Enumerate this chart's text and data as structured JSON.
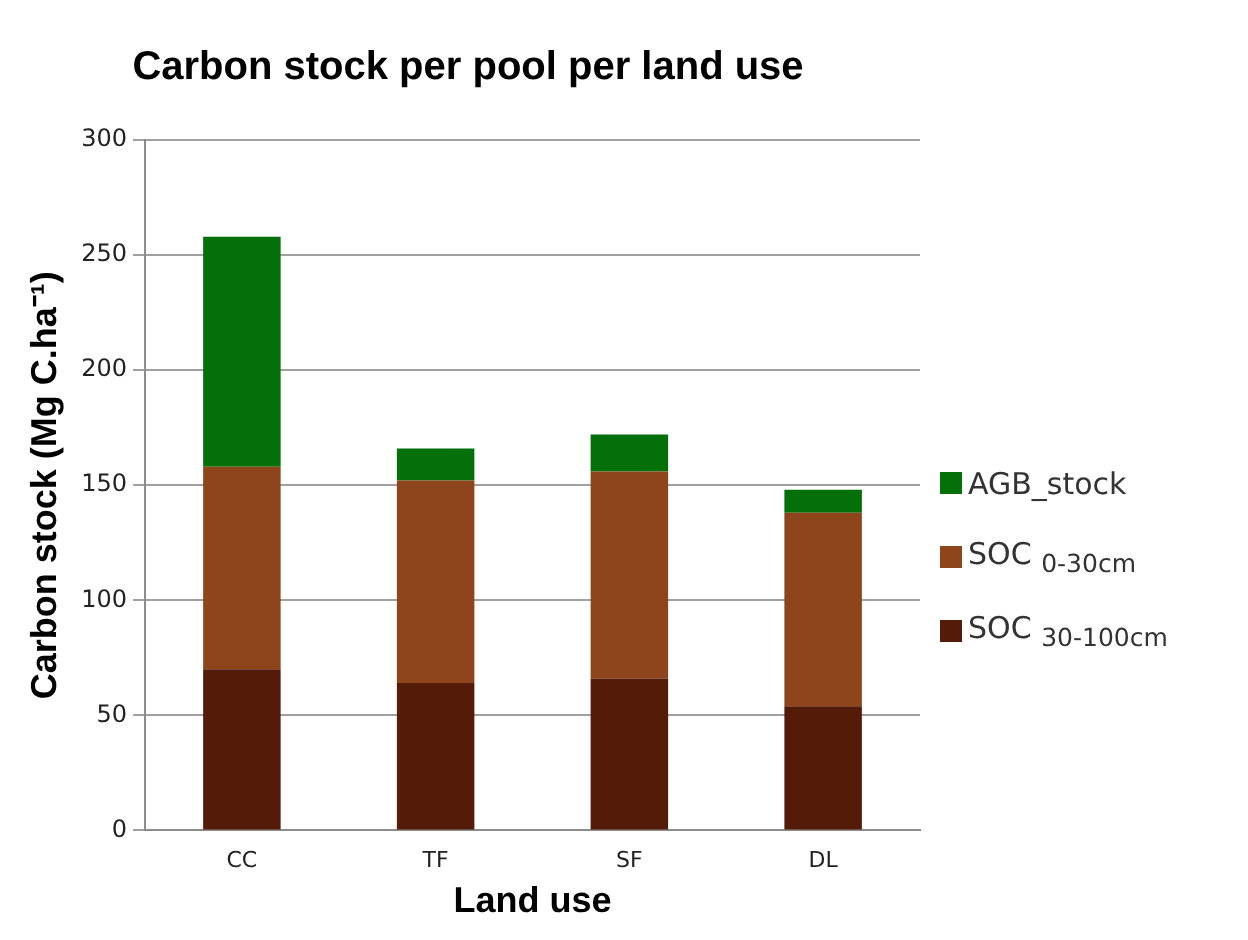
{
  "chart_data": {
    "type": "bar",
    "title": "Carbon stock per pool per land use",
    "xlabel": "Land use",
    "ylabel": "Carbon stock (Mg C.ha⁻¹)",
    "categories": [
      "CC",
      "TF",
      "SF",
      "DL"
    ],
    "stacked": true,
    "ylim": [
      0,
      300
    ],
    "yticks": [
      0,
      50,
      100,
      150,
      200,
      250,
      300
    ],
    "grid": "y",
    "legend": "right",
    "series": [
      {
        "name": "SOC $_{30-100cm}$",
        "color": "#541b08",
        "values": [
          70,
          64,
          66,
          54
        ]
      },
      {
        "name": "SOC $_{0-30cm}$",
        "color": "#8f451c",
        "values": [
          88,
          88,
          90,
          84
        ]
      },
      {
        "name": "AGB_stock",
        "color": "#03700a",
        "values": [
          100,
          14,
          16,
          10
        ]
      }
    ]
  }
}
